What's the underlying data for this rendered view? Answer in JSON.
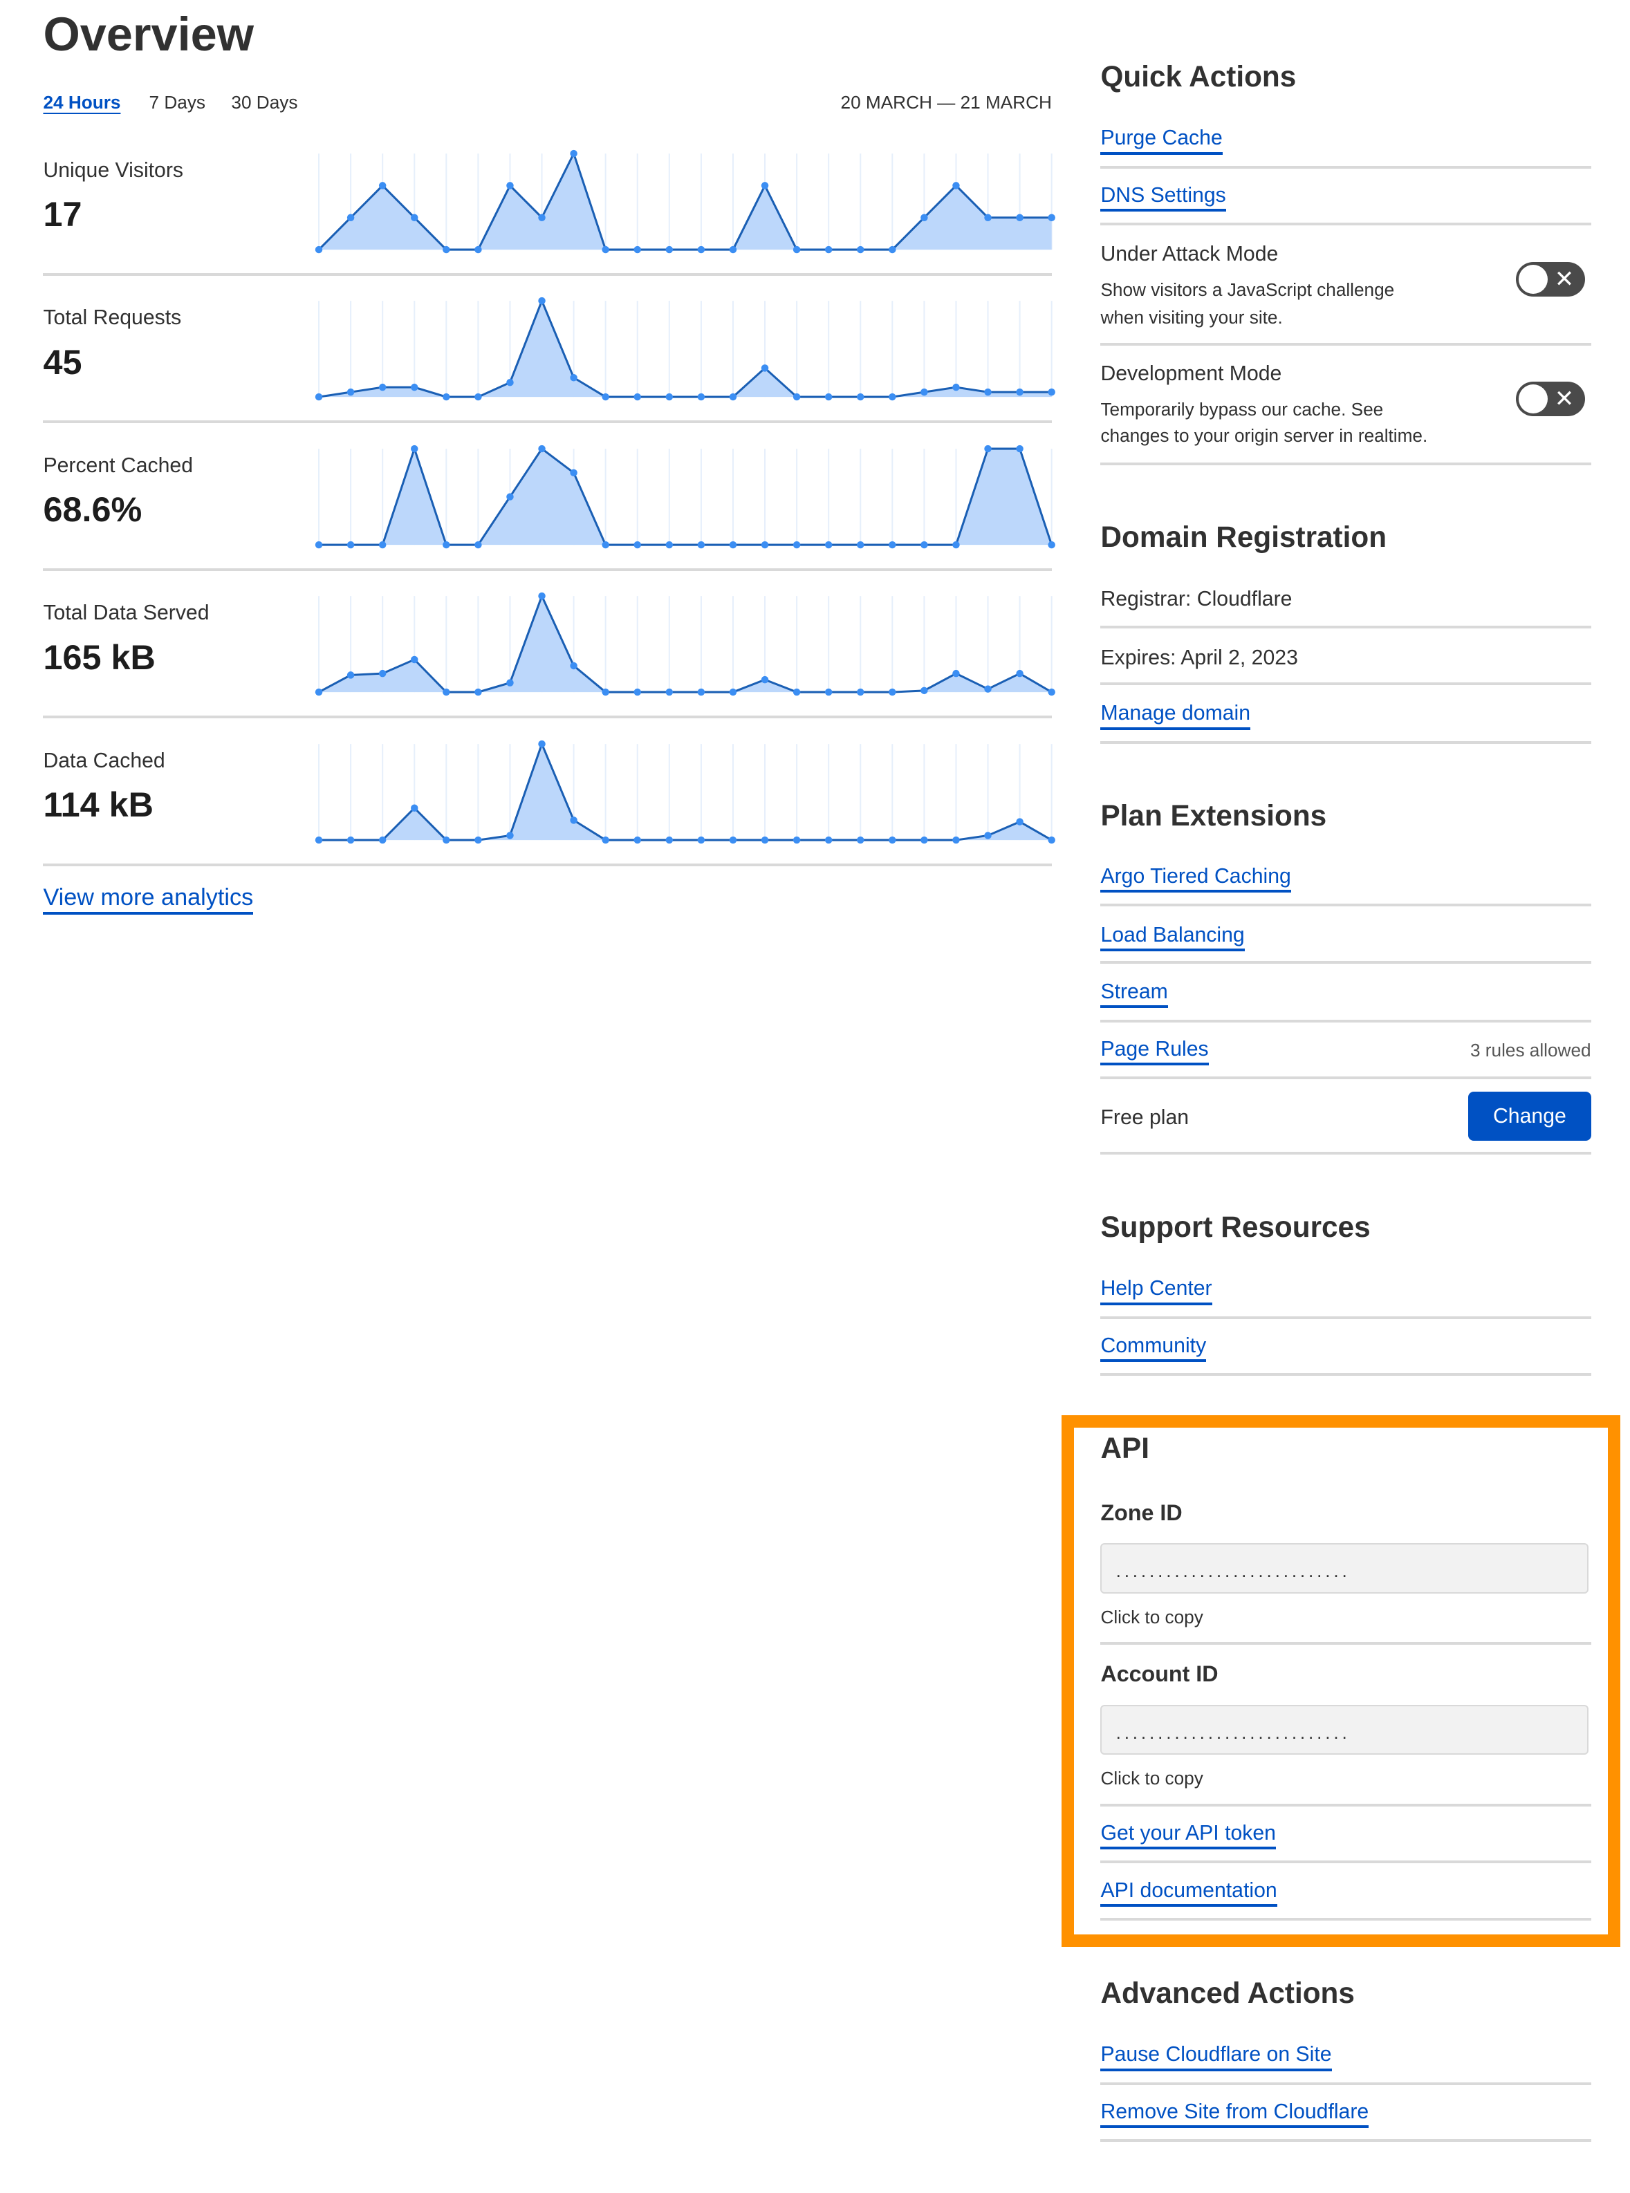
{
  "overview": {
    "title": "Overview",
    "tabs": [
      {
        "label": "24 Hours",
        "active": true
      },
      {
        "label": "7 Days",
        "active": false
      },
      {
        "label": "30 Days",
        "active": false
      }
    ],
    "date_range": "20 MARCH — 21 MARCH",
    "metrics": [
      {
        "label": "Unique Visitors",
        "value": "17"
      },
      {
        "label": "Total Requests",
        "value": "45"
      },
      {
        "label": "Percent Cached",
        "value": "68.6%"
      },
      {
        "label": "Total Data Served",
        "value": "165 kB"
      },
      {
        "label": "Data Cached",
        "value": "114 kB"
      }
    ],
    "view_more": "View more analytics"
  },
  "chart_data": [
    {
      "type": "area",
      "series": [
        {
          "values": [
            0,
            1,
            2,
            1,
            0,
            0,
            2,
            1,
            3,
            0,
            0,
            0,
            0,
            0,
            2,
            0,
            0,
            0,
            0,
            1,
            2,
            1,
            1,
            1
          ]
        }
      ],
      "ylim": [
        0,
        3
      ]
    },
    {
      "type": "area",
      "series": [
        {
          "values": [
            0,
            1,
            2,
            2,
            0,
            0,
            3,
            20,
            4,
            0,
            0,
            0,
            0,
            0,
            6,
            0,
            0,
            0,
            0,
            1,
            2,
            1,
            1,
            1
          ]
        }
      ],
      "ylim": [
        0,
        20
      ]
    },
    {
      "type": "area",
      "series": [
        {
          "values": [
            0,
            0,
            0,
            100,
            0,
            0,
            50,
            100,
            75,
            0,
            0,
            0,
            0,
            0,
            0,
            0,
            0,
            0,
            0,
            0,
            0,
            100,
            100,
            0
          ]
        }
      ],
      "ylim": [
        0,
        100
      ]
    },
    {
      "type": "area",
      "series": [
        {
          "values": [
            0,
            11,
            12,
            21,
            0,
            0,
            6,
            62,
            17,
            0,
            0,
            0,
            0,
            0,
            8,
            0,
            0,
            0,
            0,
            1,
            12,
            2,
            12,
            0
          ]
        }
      ],
      "ylim": [
        0,
        62
      ]
    },
    {
      "type": "area",
      "series": [
        {
          "values": [
            0,
            0,
            0,
            21,
            0,
            0,
            3,
            63,
            13,
            0,
            0,
            0,
            0,
            0,
            0,
            0,
            0,
            0,
            0,
            0,
            0,
            3,
            12,
            0
          ]
        }
      ],
      "ylim": [
        0,
        63
      ]
    }
  ],
  "colors": {
    "link": "#0051c3",
    "chart_line": "#1a5fb4",
    "chart_fill": "#bcd7fb",
    "chart_dot": "#3b8ef3",
    "highlight": "#ff9100",
    "button": "#0051c3"
  },
  "quick_actions": {
    "title": "Quick Actions",
    "purge_cache": "Purge Cache",
    "dns_settings": "DNS Settings",
    "under_attack": {
      "title": "Under Attack Mode",
      "desc1": "Show visitors a JavaScript challenge",
      "desc2": "when visiting your site.",
      "enabled": false
    },
    "dev_mode": {
      "title": "Development Mode",
      "desc1": "Temporarily bypass our cache. See",
      "desc2": "changes to your origin server in realtime.",
      "enabled": false
    },
    "toggle_off_glyph": "✕"
  },
  "domain_registration": {
    "title": "Domain Registration",
    "registrar": "Registrar: Cloudflare",
    "expires": "Expires: April 2, 2023",
    "manage": "Manage domain"
  },
  "plan_extensions": {
    "title": "Plan Extensions",
    "argo": "Argo Tiered Caching",
    "load_balancing": "Load Balancing",
    "stream": "Stream",
    "page_rules": "Page Rules",
    "page_rules_note": "3 rules allowed",
    "plan": "Free plan",
    "change": "Change"
  },
  "support": {
    "title": "Support Resources",
    "help": "Help Center",
    "community": "Community"
  },
  "api": {
    "title": "API",
    "zone_label": "Zone ID",
    "zone_value": "............................",
    "zone_hint": "Click to copy",
    "account_label": "Account ID",
    "account_value": "............................",
    "account_hint": "Click to copy",
    "token": "Get your API token",
    "docs": "API documentation"
  },
  "advanced": {
    "title": "Advanced Actions",
    "pause": "Pause Cloudflare on Site",
    "remove": "Remove Site from Cloudflare"
  }
}
